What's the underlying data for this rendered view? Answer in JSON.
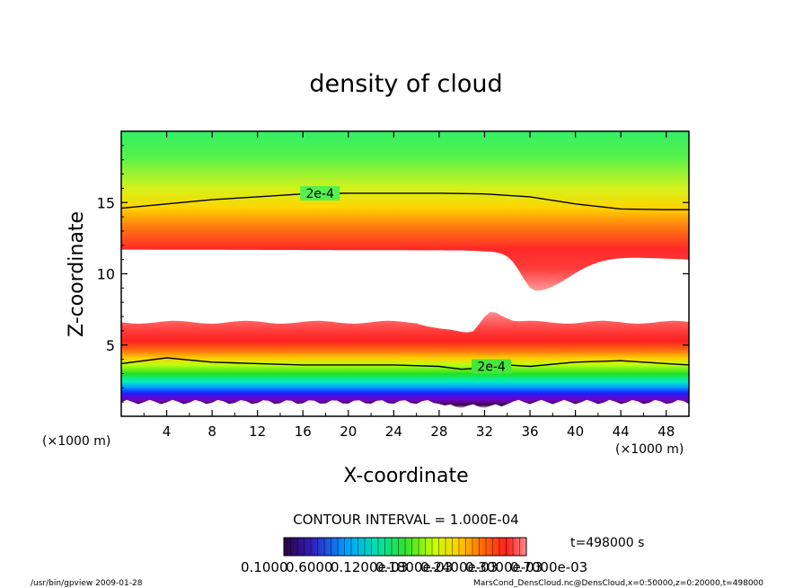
{
  "chart_data": {
    "type": "heatmap",
    "title": "density of cloud",
    "xlabel": "X-coordinate",
    "ylabel": "Z-coordinate",
    "x_unit": "(×1000 m)",
    "x_unit_left": "(×1000 m)",
    "xlim": [
      0,
      50
    ],
    "ylim": [
      0,
      20
    ],
    "x_ticks": [
      4,
      8,
      12,
      16,
      20,
      24,
      28,
      32,
      36,
      40,
      44,
      48
    ],
    "y_ticks": [
      5,
      10,
      15
    ],
    "contour_interval_text": "CONTOUR INTERVAL = 1.000E-04",
    "time_text": "t=498000 s",
    "colorbar_labels": [
      "0.1000",
      "0.6000",
      "0.1200e-03",
      "0.1800e-03",
      "0.2400e-03",
      "0.3000e-03",
      "0.7000e-03"
    ],
    "contours": [
      {
        "label": "2e-4",
        "x": [
          0,
          4,
          8,
          12,
          16,
          20,
          24,
          28,
          32,
          36,
          40,
          44,
          48,
          50
        ],
        "z": [
          14.6,
          14.9,
          15.2,
          15.4,
          15.6,
          15.65,
          15.65,
          15.65,
          15.6,
          15.4,
          14.9,
          14.55,
          14.5,
          14.5
        ],
        "label_at": [
          17.5,
          15.65
        ]
      },
      {
        "label": "2e-4",
        "x": [
          0,
          4,
          8,
          12,
          16,
          20,
          24,
          28,
          30,
          32,
          34,
          36,
          40,
          44,
          48,
          50
        ],
        "z": [
          3.7,
          4.1,
          3.8,
          3.7,
          3.6,
          3.6,
          3.6,
          3.5,
          3.3,
          3.4,
          3.6,
          3.5,
          3.8,
          3.9,
          3.7,
          3.6
        ],
        "label_at": [
          32.6,
          3.5
        ]
      }
    ],
    "structure": {
      "upper_band": {
        "top_green_z": 20,
        "red_peak_z": 13.0,
        "base_z": 11.7,
        "dip_x": 36.5,
        "dip_min_z": 8.8
      },
      "lower_band": {
        "top_z": 6.6,
        "bump_x": 32.5,
        "bump_top_z": 7.1,
        "red_peak_z": 5.0,
        "bottom_z": 1.0
      }
    }
  },
  "footer": {
    "left": "/usr/bin/gpview   2009-01-28",
    "right": "MarsCond_DensCloud.nc@DensCloud,x=0:50000,z=0:20000,t=498000"
  },
  "colors": {
    "axis": "#000000",
    "void": "#ffffff",
    "scale": [
      "#ff8080",
      "#ff2020",
      "#ff6a00",
      "#ffd000",
      "#c0ff00",
      "#30e030",
      "#00ffcc",
      "#0080ff",
      "#2020ff",
      "#6a00c0",
      "#300040"
    ]
  }
}
